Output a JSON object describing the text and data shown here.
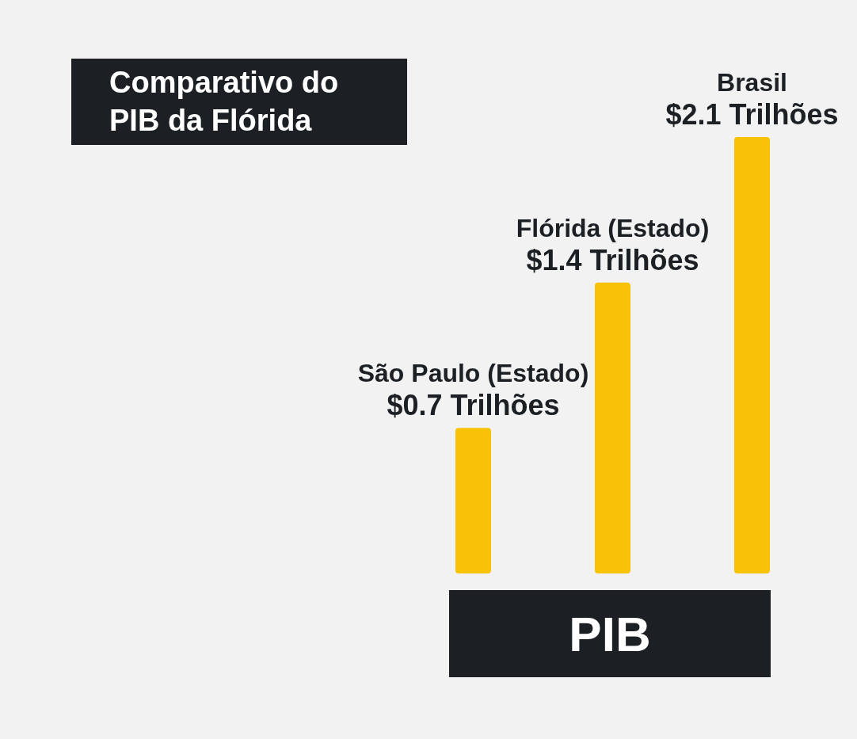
{
  "chart_data": {
    "type": "bar",
    "title": "Comparativo do PIB da Flórida",
    "xlabel": "PIB",
    "categories": [
      "São Paulo (Estado)",
      "Flórida (Estado)",
      "Brasil"
    ],
    "values": [
      0.7,
      1.4,
      2.1
    ],
    "color": "#f8c307",
    "value_labels": [
      "$0.7 Trilhões",
      "$1.4 Trilhões",
      "$2.1 Trilhões"
    ]
  }
}
